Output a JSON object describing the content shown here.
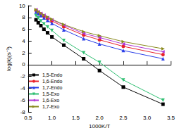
{
  "chart_data": {
    "type": "line",
    "xlabel": "1000K/T",
    "ylabel": "log(k)(s⁻¹)",
    "x": [
      0.667,
      0.714,
      0.769,
      0.833,
      0.909,
      1.0,
      1.25,
      1.667,
      2.0,
      2.5,
      3.333
    ],
    "series": [
      {
        "name": "1,5-Endo",
        "color": "#000000",
        "marker": "square",
        "values": [
          7.6,
          7.1,
          6.6,
          6.0,
          5.4,
          4.7,
          3.3,
          1.0,
          -1.0,
          -3.8,
          -6.7
        ]
      },
      {
        "name": "1,6-Endo",
        "color": "#e8202a",
        "marker": "circle",
        "values": [
          9.2,
          8.9,
          8.6,
          8.2,
          7.8,
          7.4,
          6.4,
          5.0,
          4.2,
          3.1,
          1.7
        ]
      },
      {
        "name": "1,7-Endo",
        "color": "#2a3ee8",
        "marker": "triangle-up",
        "values": [
          8.9,
          8.6,
          8.3,
          7.9,
          7.5,
          7.0,
          5.9,
          4.4,
          3.5,
          2.4,
          1.0
        ]
      },
      {
        "name": "1,5-Exo",
        "color": "#2fbf72",
        "marker": "triangle-down",
        "values": [
          8.3,
          7.9,
          7.4,
          6.9,
          6.4,
          5.8,
          4.1,
          2.0,
          0.4,
          -2.6,
          -6.0
        ]
      },
      {
        "name": "1,6-Exo",
        "color": "#b03ad6",
        "marker": "triangle-left",
        "values": [
          9.3,
          9.0,
          8.7,
          8.4,
          8.0,
          7.6,
          6.7,
          5.3,
          4.6,
          3.5,
          2.2
        ]
      },
      {
        "name": "1,7-Exo",
        "color": "#8a8a1e",
        "marker": "triangle-right",
        "values": [
          9.3,
          9.0,
          8.7,
          8.4,
          8.1,
          7.7,
          6.8,
          5.6,
          4.9,
          3.9,
          2.7
        ]
      }
    ],
    "xlim": [
      0.5,
      3.5
    ],
    "xticks": [
      {
        "value": 0.5,
        "label": "0.5"
      },
      {
        "value": 1.0,
        "label": "1.0"
      },
      {
        "value": 1.5,
        "label": "1.5"
      },
      {
        "value": 2.0,
        "label": "2.0"
      },
      {
        "value": 2.5,
        "label": "2.5"
      },
      {
        "value": 3.0,
        "label": "3.0"
      },
      {
        "value": 3.5,
        "label": "3.5"
      }
    ],
    "ylim": [
      -8,
      10
    ],
    "yticks": [
      -8,
      -6,
      -4,
      -2,
      0,
      2,
      4,
      6,
      8,
      10
    ],
    "grid": false,
    "legend": "lower left"
  }
}
